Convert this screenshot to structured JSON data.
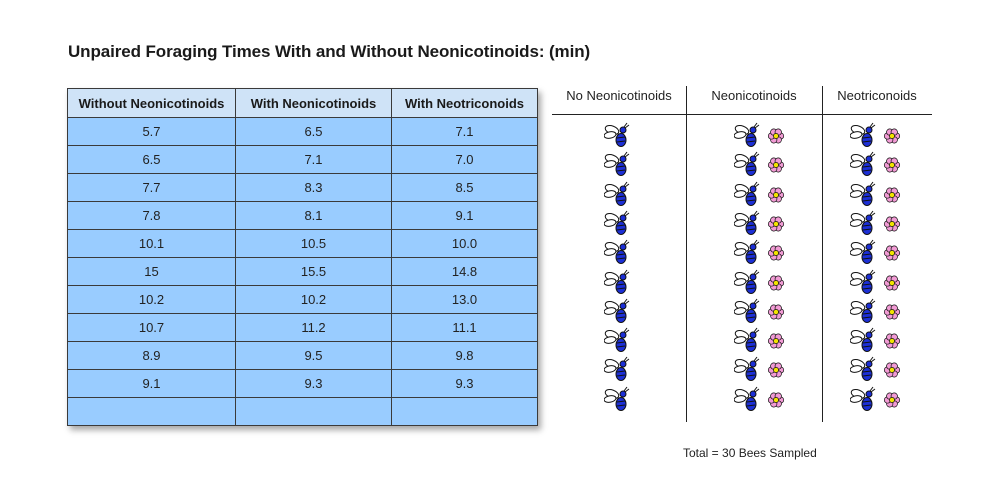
{
  "title": "Unpaired Foraging Times With and Without Neonicotinoids: (min)",
  "table": {
    "headers": [
      "Without Neonicotinoids",
      "With Neonicotinoids",
      "With Neotriconoids"
    ],
    "rows": [
      [
        "5.7",
        "6.5",
        "7.1"
      ],
      [
        "6.5",
        "7.1",
        "7.0"
      ],
      [
        "7.7",
        "8.3",
        "8.5"
      ],
      [
        "7.8",
        "8.1",
        "9.1"
      ],
      [
        "10.1",
        "10.5",
        "10.0"
      ],
      [
        "15",
        "15.5",
        "14.8"
      ],
      [
        "10.2",
        "10.2",
        "13.0"
      ],
      [
        "10.7",
        "11.2",
        "11.1"
      ],
      [
        "8.9",
        "9.5",
        "9.8"
      ],
      [
        "9.1",
        "9.3",
        "9.3"
      ],
      [
        "",
        "",
        ""
      ]
    ]
  },
  "pictograph": {
    "columns": [
      {
        "label": "No Neonicotinoids",
        "icons": [
          "bee-icon"
        ],
        "count": 10
      },
      {
        "label": "Neonicotinoids",
        "icons": [
          "bee-icon",
          "flower-icon"
        ],
        "count": 10
      },
      {
        "label": "Neotriconoids",
        "icons": [
          "bee-icon",
          "flower-icon"
        ],
        "count": 10
      }
    ],
    "colors": {
      "bee": "#1c2fd6",
      "flower": "#f29bd5",
      "flower_center": "#f2e400"
    }
  },
  "footer": "Total = 30 Bees Sampled"
}
